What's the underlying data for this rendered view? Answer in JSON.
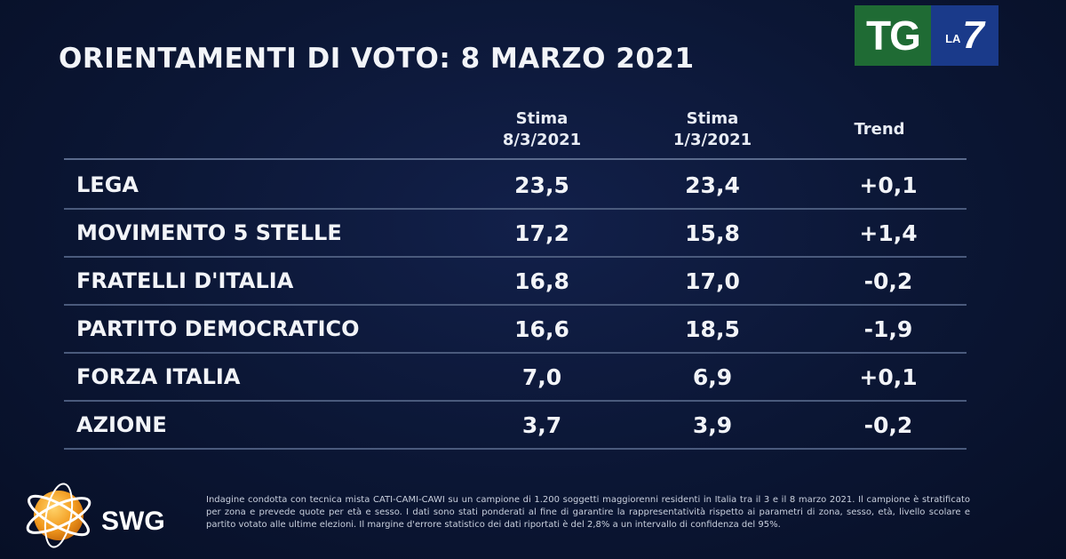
{
  "title": "ORIENTAMENTI DI VOTO: 8 MARZO 2021",
  "logo": {
    "tg": "TG",
    "la": "LA",
    "seven": "7"
  },
  "chart_data": {
    "type": "table",
    "columns": [
      {
        "line1": "Stima",
        "line2": "8/3/2021"
      },
      {
        "line1": "Stima",
        "line2": "1/3/2021"
      },
      {
        "line1": "Trend",
        "line2": ""
      }
    ],
    "rows": [
      {
        "party": "LEGA",
        "stima_8_3": "23,5",
        "stima_1_3": "23,4",
        "trend": "+0,1"
      },
      {
        "party": "MOVIMENTO 5 STELLE",
        "stima_8_3": "17,2",
        "stima_1_3": "15,8",
        "trend": "+1,4"
      },
      {
        "party": "FRATELLI D'ITALIA",
        "stima_8_3": "16,8",
        "stima_1_3": "17,0",
        "trend": "-0,2"
      },
      {
        "party": "PARTITO DEMOCRATICO",
        "stima_8_3": "16,6",
        "stima_1_3": "18,5",
        "trend": "-1,9"
      },
      {
        "party": "FORZA ITALIA",
        "stima_8_3": "7,0",
        "stima_1_3": "6,9",
        "trend": "+0,1"
      },
      {
        "party": "AZIONE",
        "stima_8_3": "3,7",
        "stima_1_3": "3,9",
        "trend": "-0,2"
      }
    ]
  },
  "footer": {
    "brand": "SWG",
    "note": "Indagine condotta con tecnica mista CATI-CAMI-CAWI su un campione di 1.200 soggetti maggiorenni residenti in Italia tra il 3 e il 8 marzo 2021. Il campione è stratificato per zona e prevede quote per età e sesso. I dati sono stati ponderati al fine di garantire la rappresentatività rispetto ai parametri di zona, sesso, età, livello scolare e partito votato alle ultime elezioni. Il margine d'errore statistico dei dati riportati è del 2,8% a un intervallo di confidenza del 95%."
  }
}
